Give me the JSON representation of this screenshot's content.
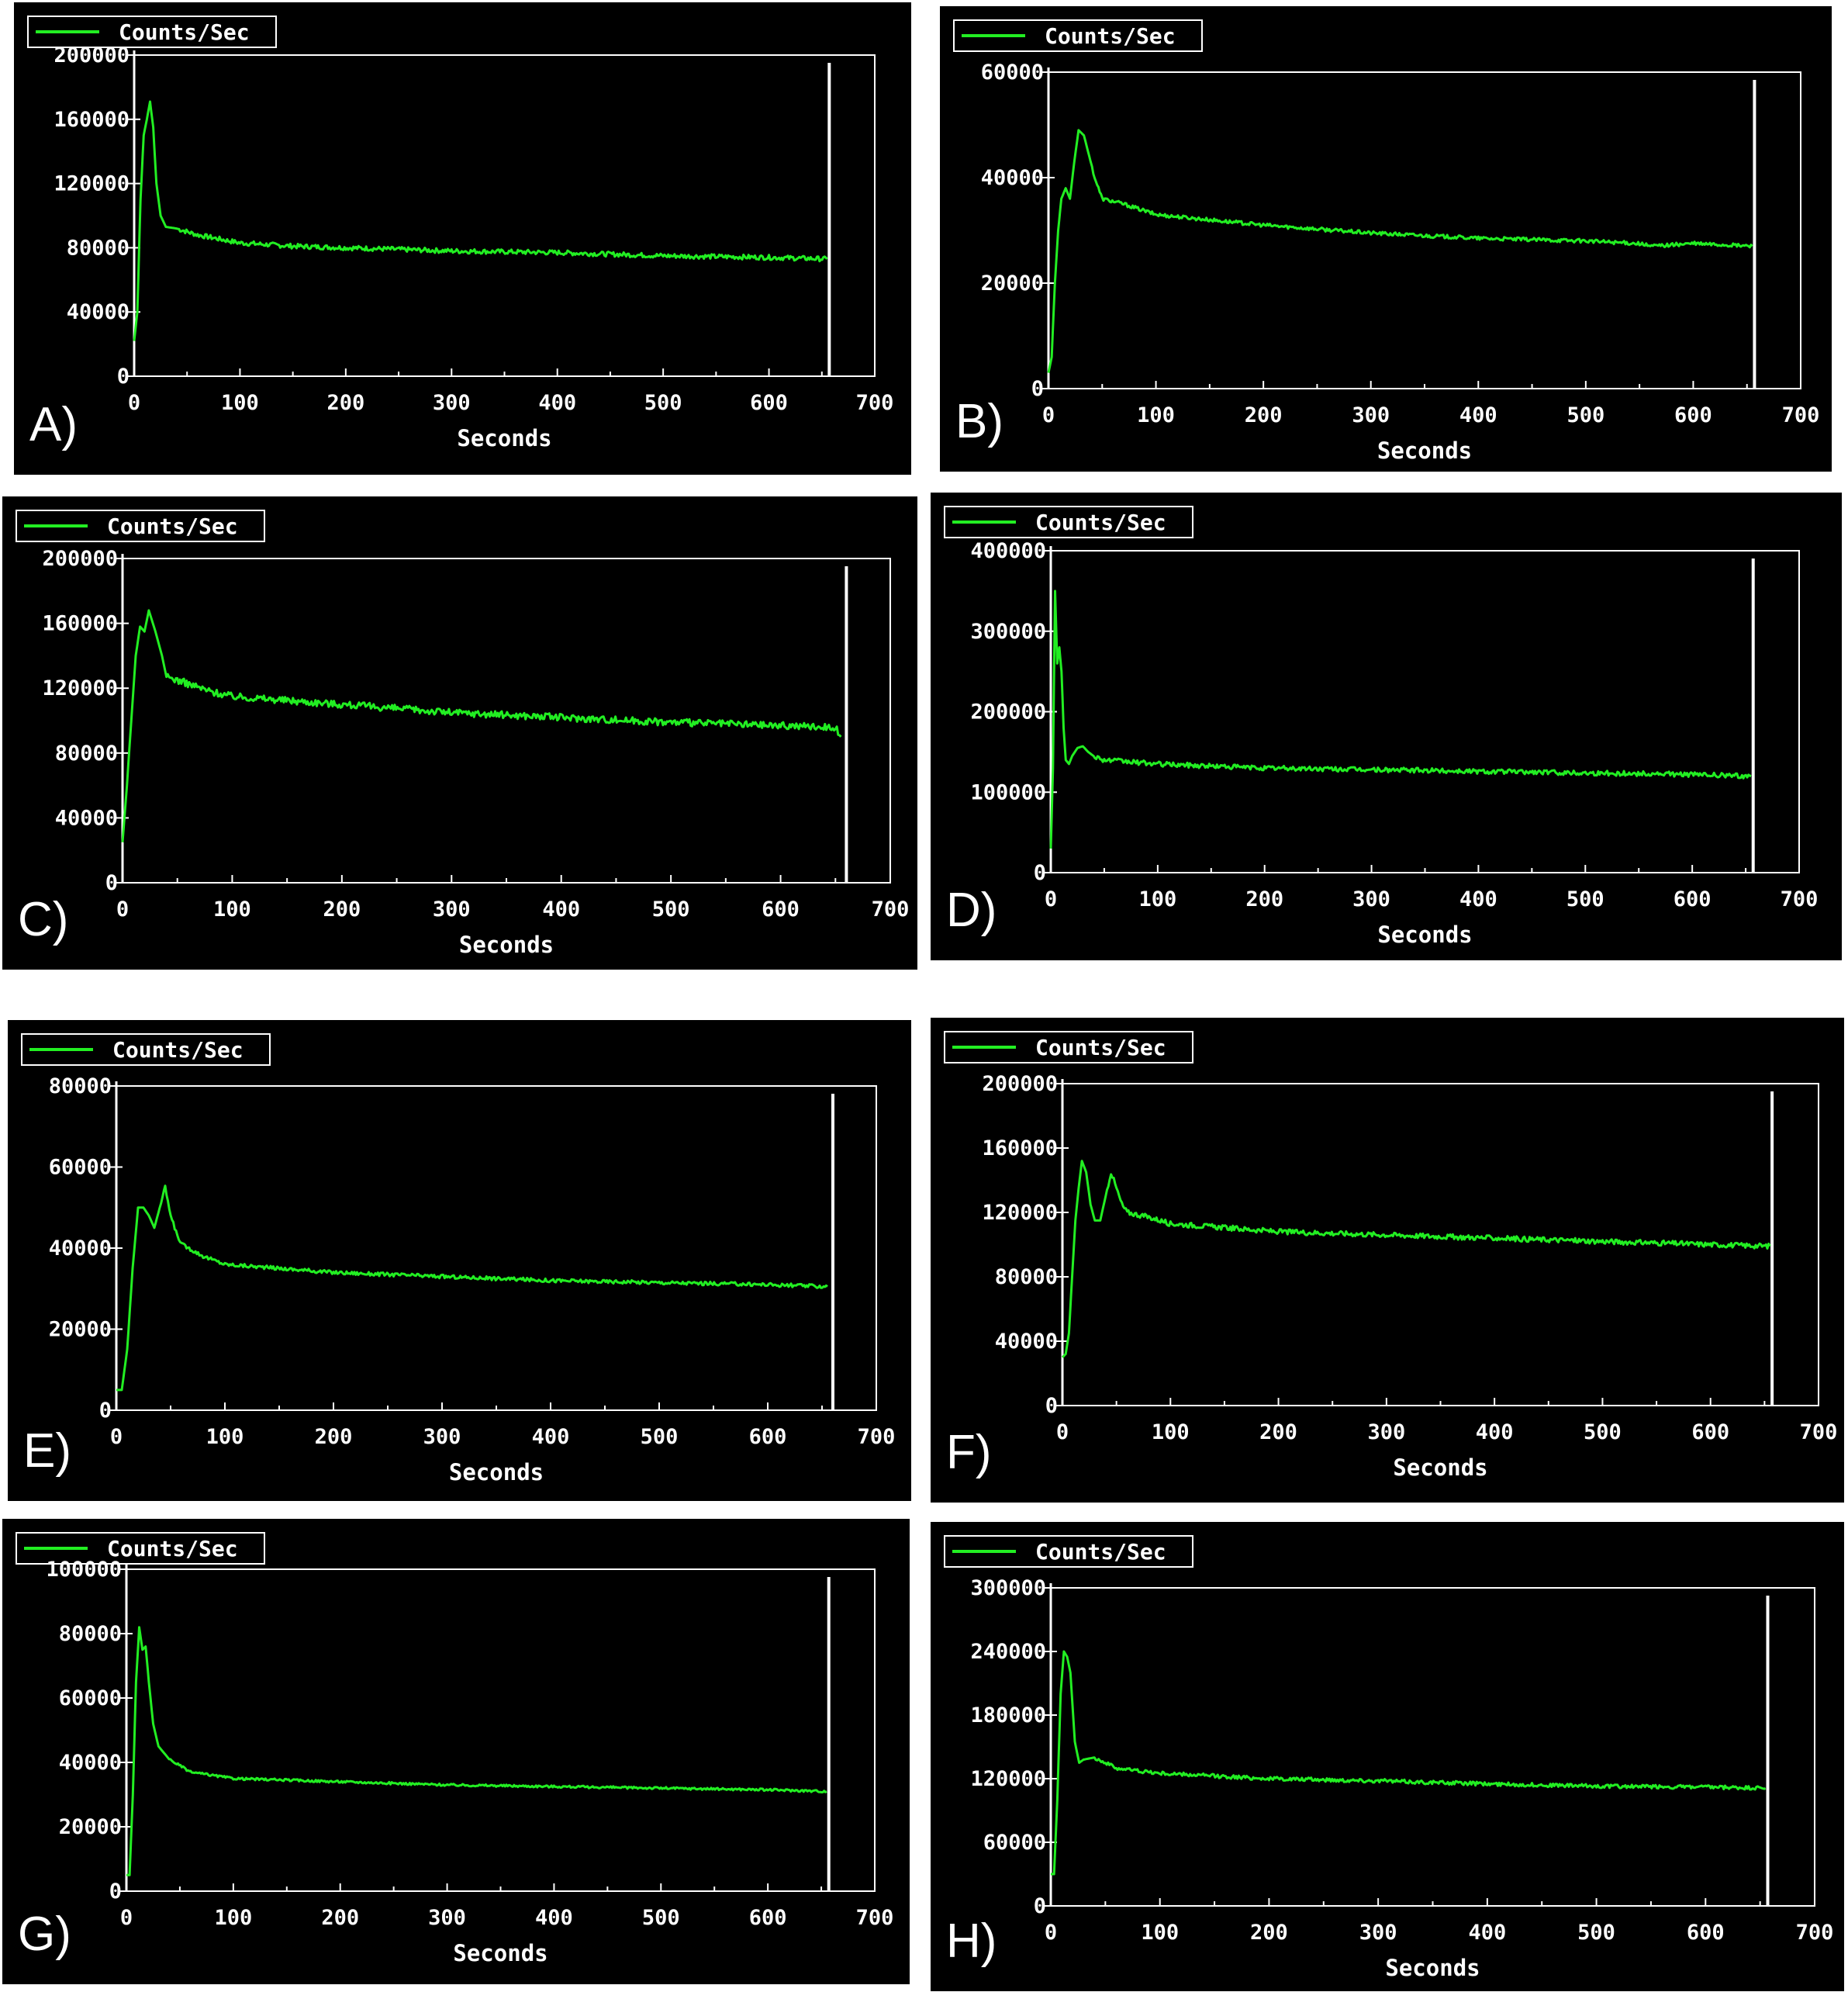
{
  "legend_label": "Counts/Sec",
  "xlabel": "Seconds",
  "colors": {
    "series": "#22ee22",
    "axes": "#ffffff",
    "background": "#000000"
  },
  "chart_data": [
    {
      "panel": "A)",
      "type": "line",
      "xlim": [
        0,
        700
      ],
      "ylim": [
        0,
        200000
      ],
      "xticks": [
        "0",
        "100",
        "200",
        "300",
        "400",
        "500",
        "600",
        "700"
      ],
      "yticks": [
        "0",
        "40000",
        "80000",
        "120000",
        "160000",
        "200000"
      ],
      "series": [
        {
          "name": "Counts/Sec",
          "x": [
            0,
            3,
            6,
            9,
            12,
            15,
            18,
            21,
            25,
            30,
            40,
            60,
            100,
            150,
            200,
            300,
            400,
            500,
            600,
            655
          ],
          "y": [
            22000,
            40000,
            110000,
            150000,
            160000,
            171000,
            155000,
            120000,
            100000,
            93000,
            92000,
            88000,
            83000,
            81000,
            80000,
            78000,
            77000,
            75000,
            74000,
            73000
          ]
        }
      ],
      "marker_x": 657,
      "noise": 1500
    },
    {
      "panel": "B)",
      "type": "line",
      "xlim": [
        0,
        700
      ],
      "ylim": [
        0,
        60000
      ],
      "xticks": [
        "0",
        "100",
        "200",
        "300",
        "400",
        "500",
        "600",
        "700"
      ],
      "yticks": [
        "0",
        "20000",
        "40000",
        "60000"
      ],
      "series": [
        {
          "name": "Counts/Sec",
          "x": [
            0,
            3,
            6,
            9,
            12,
            16,
            20,
            24,
            28,
            33,
            38,
            43,
            50,
            70,
            100,
            200,
            300,
            400,
            500,
            550,
            560,
            600,
            655
          ],
          "y": [
            3000,
            6000,
            20000,
            30000,
            36000,
            38000,
            36000,
            43000,
            49000,
            48000,
            44000,
            40000,
            36000,
            35000,
            33000,
            31000,
            29500,
            28500,
            28000,
            27500,
            27000,
            27500,
            27000
          ]
        }
      ],
      "marker_x": 657,
      "noise": 350
    },
    {
      "panel": "C)",
      "type": "line",
      "xlim": [
        0,
        700
      ],
      "ylim": [
        0,
        200000
      ],
      "xticks": [
        "0",
        "100",
        "200",
        "300",
        "400",
        "500",
        "600",
        "700"
      ],
      "yticks": [
        "0",
        "40000",
        "80000",
        "120000",
        "160000",
        "200000"
      ],
      "series": [
        {
          "name": "Counts/Sec",
          "x": [
            0,
            4,
            8,
            12,
            16,
            20,
            24,
            30,
            36,
            40,
            50,
            80,
            100,
            200,
            300,
            400,
            500,
            600,
            650,
            655
          ],
          "y": [
            25000,
            60000,
            100000,
            140000,
            158000,
            155000,
            168000,
            155000,
            140000,
            127000,
            125000,
            118000,
            115000,
            110000,
            105000,
            102000,
            99000,
            97000,
            96000,
            90000
          ]
        }
      ],
      "marker_x": 660,
      "noise": 2200
    },
    {
      "panel": "D)",
      "type": "line",
      "xlim": [
        0,
        700
      ],
      "ylim": [
        0,
        400000
      ],
      "xticks": [
        "0",
        "100",
        "200",
        "300",
        "400",
        "500",
        "600",
        "700"
      ],
      "yticks": [
        "0",
        "100000",
        "200000",
        "300000",
        "400000"
      ],
      "series": [
        {
          "name": "Counts/Sec",
          "x": [
            0,
            2,
            4,
            6,
            8,
            10,
            12,
            14,
            17,
            20,
            25,
            30,
            35,
            40,
            50,
            100,
            200,
            300,
            400,
            500,
            600,
            655
          ],
          "y": [
            30000,
            130000,
            350000,
            260000,
            280000,
            250000,
            180000,
            140000,
            135000,
            145000,
            155000,
            157000,
            150000,
            145000,
            140000,
            135000,
            130000,
            128000,
            126000,
            124000,
            122000,
            120000
          ]
        }
      ],
      "marker_x": 657,
      "noise": 3000
    },
    {
      "panel": "E)",
      "type": "line",
      "xlim": [
        0,
        700
      ],
      "ylim": [
        0,
        80000
      ],
      "xticks": [
        "0",
        "100",
        "200",
        "300",
        "400",
        "500",
        "600",
        "700"
      ],
      "yticks": [
        "0",
        "20000",
        "40000",
        "60000",
        "80000"
      ],
      "series": [
        {
          "name": "Counts/Sec",
          "x": [
            0,
            5,
            10,
            15,
            20,
            25,
            30,
            35,
            40,
            45,
            50,
            55,
            60,
            80,
            100,
            200,
            300,
            400,
            500,
            600,
            655
          ],
          "y": [
            5000,
            5000,
            15000,
            35000,
            50000,
            50000,
            48000,
            45000,
            50000,
            55000,
            48000,
            44000,
            41000,
            38000,
            36000,
            34000,
            33000,
            32000,
            31500,
            31000,
            30500
          ]
        }
      ],
      "marker_x": 660,
      "noise": 450
    },
    {
      "panel": "F)",
      "type": "line",
      "xlim": [
        0,
        700
      ],
      "ylim": [
        0,
        200000
      ],
      "xticks": [
        "0",
        "100",
        "200",
        "300",
        "400",
        "500",
        "600",
        "700"
      ],
      "yticks": [
        "0",
        "40000",
        "80000",
        "120000",
        "160000",
        "200000"
      ],
      "series": [
        {
          "name": "Counts/Sec",
          "x": [
            0,
            3,
            6,
            9,
            12,
            15,
            18,
            22,
            26,
            30,
            35,
            40,
            45,
            50,
            55,
            60,
            80,
            100,
            200,
            300,
            400,
            500,
            600,
            655
          ],
          "y": [
            30000,
            32000,
            45000,
            80000,
            115000,
            135000,
            152000,
            145000,
            125000,
            115000,
            115000,
            130000,
            145000,
            135000,
            125000,
            120000,
            117000,
            113000,
            108000,
            106000,
            104000,
            102000,
            100000,
            99000
          ]
        }
      ],
      "marker_x": 657,
      "noise": 1600
    },
    {
      "panel": "G)",
      "type": "line",
      "xlim": [
        0,
        700
      ],
      "ylim": [
        0,
        100000
      ],
      "xticks": [
        "0",
        "100",
        "200",
        "300",
        "400",
        "500",
        "600",
        "700"
      ],
      "yticks": [
        "0",
        "20000",
        "40000",
        "60000",
        "80000",
        "100000"
      ],
      "series": [
        {
          "name": "Counts/Sec",
          "x": [
            0,
            3,
            6,
            9,
            12,
            15,
            18,
            21,
            25,
            30,
            40,
            60,
            100,
            200,
            300,
            400,
            500,
            600,
            655
          ],
          "y": [
            5000,
            5000,
            30000,
            65000,
            82000,
            75000,
            76000,
            65000,
            52000,
            45000,
            41000,
            37000,
            35000,
            34000,
            33000,
            32500,
            32000,
            31500,
            31000
          ]
        }
      ],
      "marker_x": 657,
      "noise": 350
    },
    {
      "panel": "H)",
      "type": "line",
      "xlim": [
        0,
        700
      ],
      "ylim": [
        0,
        300000
      ],
      "xticks": [
        "0",
        "100",
        "200",
        "300",
        "400",
        "500",
        "600",
        "700"
      ],
      "yticks": [
        "0",
        "60000",
        "120000",
        "180000",
        "240000",
        "300000"
      ],
      "series": [
        {
          "name": "Counts/Sec",
          "x": [
            0,
            3,
            6,
            9,
            12,
            15,
            18,
            22,
            26,
            30,
            40,
            50,
            60,
            100,
            200,
            300,
            400,
            500,
            600,
            655
          ],
          "y": [
            30000,
            30000,
            100000,
            200000,
            240000,
            235000,
            220000,
            155000,
            135000,
            138000,
            140000,
            135000,
            130000,
            125000,
            120000,
            118000,
            115000,
            113000,
            112000,
            111000
          ]
        }
      ],
      "marker_x": 657,
      "noise": 1800
    }
  ]
}
